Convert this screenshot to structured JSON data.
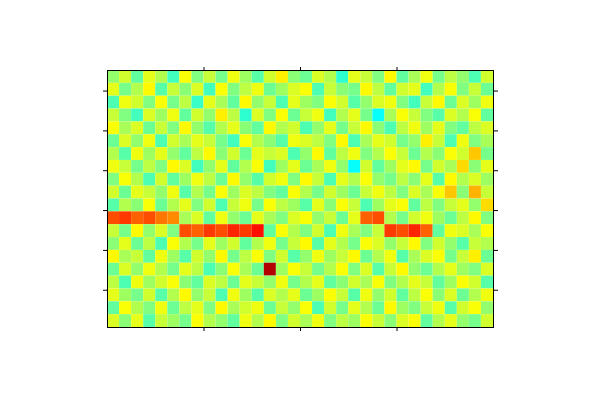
{
  "chart_data": {
    "type": "heatmap",
    "tick_labels": false,
    "xlim": [
      0,
      32
    ],
    "ylim": [
      0,
      20
    ],
    "xticks": [
      8,
      16,
      24
    ],
    "yticks": [
      1.6,
      4.7,
      7.8,
      10.9,
      14,
      17.1
    ],
    "value_range": [
      0,
      100
    ],
    "cells": [
      [
        52,
        58,
        47,
        60,
        55,
        44,
        62,
        50,
        57,
        49,
        61,
        53,
        46,
        58,
        64,
        51,
        48,
        59,
        55,
        42,
        60,
        57,
        50,
        63,
        47,
        54,
        61,
        49,
        56,
        52,
        45,
        58
      ],
      [
        60,
        49,
        55,
        63,
        46,
        57,
        51,
        59,
        44,
        62,
        50,
        56,
        61,
        48,
        53,
        59,
        62,
        45,
        57,
        51,
        49,
        63,
        56,
        47,
        58,
        60,
        44,
        55,
        62,
        50,
        57,
        48
      ],
      [
        45,
        61,
        58,
        50,
        62,
        49,
        56,
        43,
        60,
        54,
        47,
        63,
        52,
        57,
        45,
        60,
        53,
        50,
        62,
        58,
        46,
        52,
        59,
        61,
        50,
        44,
        57,
        63,
        48,
        59,
        53,
        61
      ],
      [
        57,
        50,
        44,
        59,
        53,
        61,
        47,
        58,
        52,
        64,
        56,
        42,
        59,
        50,
        62,
        48,
        57,
        61,
        44,
        55,
        60,
        49,
        38,
        54,
        62,
        57,
        50,
        46,
        59,
        55,
        62,
        47
      ],
      [
        62,
        54,
        59,
        48,
        57,
        50,
        63,
        52,
        46,
        55,
        60,
        51,
        47,
        63,
        55,
        58,
        45,
        52,
        60,
        49,
        57,
        63,
        51,
        45,
        56,
        61,
        53,
        60,
        50,
        47,
        56,
        59
      ],
      [
        48,
        59,
        52,
        61,
        45,
        58,
        54,
        60,
        57,
        49,
        44,
        62,
        55,
        51,
        46,
        61,
        59,
        56,
        50,
        63,
        45,
        54,
        60,
        58,
        49,
        52,
        64,
        57,
        45,
        61,
        50,
        54
      ],
      [
        55,
        46,
        61,
        53,
        60,
        52,
        47,
        56,
        63,
        51,
        58,
        48,
        60,
        57,
        59,
        45,
        52,
        63,
        47,
        56,
        61,
        50,
        55,
        62,
        57,
        48,
        55,
        51,
        62,
        58,
        68,
        49
      ],
      [
        61,
        57,
        49,
        56,
        50,
        63,
        59,
        44,
        52,
        60,
        47,
        55,
        62,
        44,
        53,
        60,
        48,
        54,
        61,
        52,
        38,
        58,
        47,
        53,
        60,
        63,
        49,
        58,
        54,
        66,
        51,
        60
      ],
      [
        50,
        62,
        55,
        45,
        58,
        47,
        53,
        61,
        56,
        48,
        63,
        52,
        46,
        58,
        61,
        50,
        63,
        57,
        45,
        60,
        55,
        62,
        52,
        49,
        56,
        51,
        60,
        46,
        63,
        55,
        59,
        53
      ],
      [
        58,
        48,
        60,
        57,
        52,
        61,
        46,
        55,
        49,
        62,
        53,
        59,
        56,
        50,
        47,
        62,
        55,
        49,
        58,
        53,
        48,
        57,
        61,
        56,
        50,
        59,
        54,
        62,
        68,
        51,
        70,
        57
      ],
      [
        46,
        55,
        51,
        62,
        48,
        55,
        60,
        50,
        58,
        45,
        57,
        61,
        49,
        62,
        56,
        53,
        46,
        60,
        51,
        62,
        57,
        45,
        53,
        60,
        62,
        47,
        56,
        50,
        57,
        60,
        52,
        66
      ],
      [
        80,
        82,
        78,
        80,
        76,
        74,
        54,
        59,
        47,
        61,
        52,
        48,
        60,
        54,
        50,
        59,
        62,
        52,
        57,
        48,
        60,
        78,
        80,
        55,
        49,
        58,
        61,
        53,
        48,
        56,
        63,
        50
      ],
      [
        57,
        49,
        63,
        52,
        59,
        50,
        80,
        78,
        82,
        80,
        84,
        82,
        86,
        47,
        62,
        55,
        50,
        58,
        45,
        61,
        54,
        50,
        57,
        82,
        80,
        84,
        78,
        47,
        61,
        59,
        54,
        62
      ],
      [
        51,
        60,
        48,
        56,
        45,
        62,
        55,
        49,
        60,
        53,
        58,
        47,
        55,
        61,
        49,
        57,
        63,
        46,
        60,
        55,
        49,
        62,
        59,
        52,
        57,
        63,
        50,
        58,
        52,
        46,
        57,
        55
      ],
      [
        63,
        54,
        57,
        47,
        61,
        53,
        46,
        58,
        52,
        63,
        49,
        56,
        62,
        50,
        58,
        46,
        52,
        61,
        53,
        57,
        63,
        48,
        55,
        61,
        46,
        54,
        59,
        62,
        49,
        57,
        64,
        48
      ],
      [
        48,
        59,
        52,
        61,
        55,
        49,
        60,
        56,
        45,
        51,
        62,
        54,
        48,
        95,
        53,
        62,
        57,
        49,
        55,
        62,
        50,
        59,
        46,
        57,
        63,
        52,
        48,
        55,
        60,
        53,
        50,
        59
      ],
      [
        56,
        45,
        61,
        53,
        58,
        62,
        51,
        47,
        59,
        56,
        48,
        60,
        57,
        52,
        61,
        49,
        55,
        60,
        47,
        51,
        58,
        54,
        62,
        50,
        55,
        60,
        57,
        47,
        53,
        62,
        58,
        46
      ],
      [
        60,
        53,
        49,
        58,
        46,
        55,
        63,
        52,
        57,
        45,
        61,
        53,
        46,
        59,
        55,
        60,
        48,
        53,
        62,
        57,
        46,
        61,
        52,
        58,
        47,
        56,
        62,
        51,
        59,
        48,
        55,
        61
      ],
      [
        47,
        62,
        55,
        50,
        61,
        48,
        56,
        60,
        50,
        63,
        54,
        58,
        61,
        48,
        57,
        52,
        62,
        45,
        58,
        49,
        60,
        55,
        48,
        63,
        53,
        50,
        57,
        61,
        46,
        58,
        62,
        52
      ],
      [
        59,
        51,
        60,
        46,
        57,
        53,
        49,
        62,
        55,
        52,
        47,
        61,
        55,
        63,
        50,
        58,
        54,
        61,
        50,
        56,
        53,
        62,
        57,
        51,
        59,
        62,
        47,
        55,
        60,
        52,
        49,
        58
      ]
    ]
  }
}
